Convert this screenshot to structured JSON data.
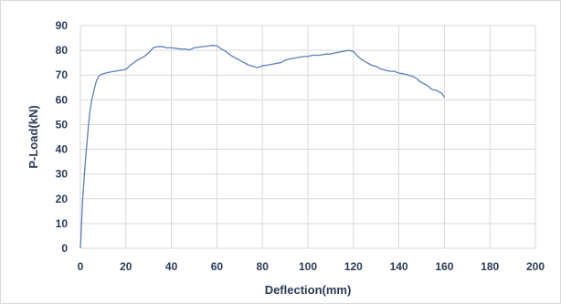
{
  "chart_data": {
    "type": "line",
    "title": "",
    "xlabel": "Deflection(mm)",
    "ylabel": "P-Load(kN)",
    "xlim": [
      0,
      200
    ],
    "ylim": [
      0,
      90
    ],
    "xticks": [
      0,
      20,
      40,
      60,
      80,
      100,
      120,
      140,
      160,
      180,
      200
    ],
    "yticks": [
      0,
      10,
      20,
      30,
      40,
      50,
      60,
      70,
      80,
      90
    ],
    "grid": true,
    "legend": "none",
    "line_color": "#5b7fb4",
    "series": [
      {
        "x": [
          0,
          1,
          2,
          3,
          4,
          5,
          6,
          7,
          8,
          9,
          10,
          12,
          15,
          18,
          20,
          22,
          25,
          28,
          30,
          32,
          34,
          36,
          38,
          40,
          42,
          44,
          46,
          48,
          50,
          52,
          54,
          56,
          58,
          60,
          62,
          64,
          66,
          68,
          70,
          72,
          74,
          76,
          78,
          80,
          82,
          85,
          88,
          90,
          92,
          95,
          98,
          100,
          102,
          105,
          108,
          110,
          112,
          115,
          118,
          120,
          122,
          124,
          126,
          128,
          130,
          132,
          134,
          136,
          138,
          140,
          142,
          144,
          146,
          148,
          149,
          150,
          151,
          152,
          153,
          154,
          155,
          156,
          157,
          158,
          159,
          160
        ],
        "y": [
          0,
          20,
          33,
          44,
          54,
          60,
          64,
          67.5,
          69.5,
          70.2,
          70.5,
          71,
          71.5,
          72,
          72.3,
          74,
          76,
          77.5,
          79,
          81,
          81.5,
          81.5,
          81,
          81,
          80.8,
          80.5,
          80.5,
          80.2,
          81,
          81.3,
          81.5,
          81.7,
          82,
          81.8,
          80.5,
          79.5,
          78,
          77,
          76,
          75,
          74,
          73.5,
          73,
          73.8,
          74,
          74.5,
          75,
          76,
          76.5,
          77,
          77.5,
          77.5,
          78,
          78,
          78.5,
          78.5,
          79,
          79.5,
          80,
          79.5,
          77.5,
          76,
          75,
          74,
          73.5,
          72.5,
          72,
          71.5,
          71.5,
          70.8,
          70.5,
          70,
          69.5,
          68.5,
          67.5,
          67,
          66.5,
          66,
          65.5,
          64.5,
          64,
          64,
          63.5,
          63,
          62.5,
          61
        ]
      }
    ]
  }
}
